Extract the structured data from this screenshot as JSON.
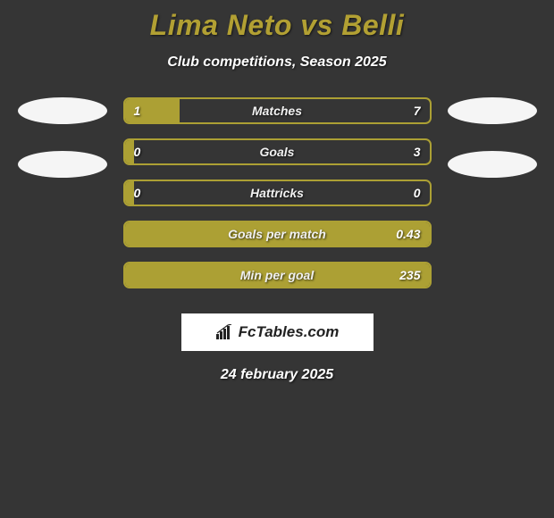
{
  "header": {
    "title": "Lima Neto vs Belli",
    "title_color": "#b2a033",
    "title_fontsize": 32,
    "subtitle": "Club competitions, Season 2025",
    "subtitle_fontsize": 16
  },
  "background_color": "#353535",
  "bar_color": "#aca034",
  "bar_border_color": "#aca034",
  "ellipse_color": "#f5f5f5",
  "text_color": "#ffffff",
  "label_fontsize": 14,
  "stats": [
    {
      "label": "Matches",
      "left_value": "1",
      "right_value": "7",
      "fill_pct": 18
    },
    {
      "label": "Goals",
      "left_value": "0",
      "right_value": "3",
      "fill_pct": 3
    },
    {
      "label": "Hattricks",
      "left_value": "0",
      "right_value": "0",
      "fill_pct": 3
    },
    {
      "label": "Goals per match",
      "left_value": "",
      "right_value": "0.43",
      "fill_pct": 100
    },
    {
      "label": "Min per goal",
      "left_value": "",
      "right_value": "235",
      "fill_pct": 100
    }
  ],
  "ellipses_left_count": 2,
  "ellipses_right_count": 2,
  "logo": {
    "text": "FcTables.com",
    "text_color": "#222222",
    "bg_color": "#ffffff"
  },
  "date": "24 february 2025"
}
